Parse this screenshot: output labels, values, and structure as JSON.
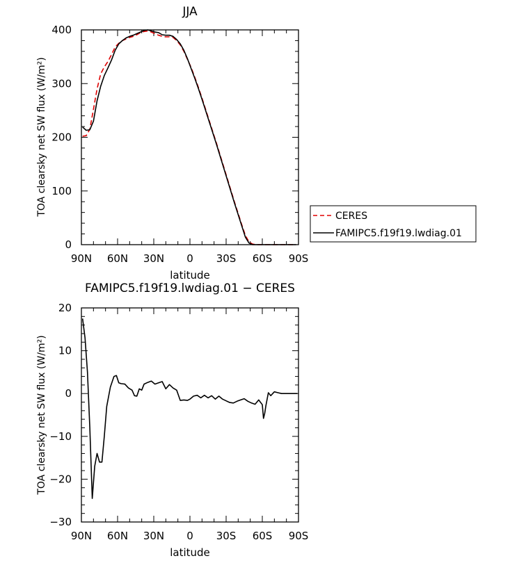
{
  "chart_data": [
    {
      "type": "line",
      "title": "JJA",
      "xlabel": "latitude",
      "ylabel": "TOA clearsky net SW flux (W/m²)",
      "xticks": [
        "90N",
        "60N",
        "30N",
        "0",
        "30S",
        "60S",
        "90S"
      ],
      "yticks": [
        "0",
        "100",
        "200",
        "300",
        "400"
      ],
      "xlim": [
        90,
        -90
      ],
      "ylim": [
        0,
        400
      ],
      "legend": "right",
      "series": [
        {
          "name": "CERES",
          "color": "#e00000",
          "dash": "dashed",
          "x": [
            89,
            86,
            83,
            80,
            77,
            74,
            71,
            68,
            65,
            62,
            59,
            56,
            53,
            50,
            47,
            44,
            41,
            38,
            35,
            32,
            29,
            26,
            23,
            20,
            17,
            14,
            11,
            8,
            5,
            2,
            -1,
            -4,
            -7,
            -10,
            -13,
            -16,
            -19,
            -22,
            -25,
            -28,
            -31,
            -34,
            -37,
            -40,
            -43,
            -46,
            -49,
            -52,
            -55,
            -58,
            -61,
            -64,
            -67,
            -70,
            -73,
            -76,
            -79,
            -82,
            -85,
            -88
          ],
          "values": [
            202,
            203,
            215,
            252,
            290,
            318,
            331,
            341,
            354,
            368,
            375,
            380,
            383,
            386,
            388,
            391,
            395,
            397,
            398,
            396,
            393,
            390,
            388,
            387,
            387,
            386,
            380,
            372,
            360,
            345,
            330,
            312,
            293,
            273,
            252,
            231,
            210,
            189,
            167,
            145,
            123,
            101,
            79,
            58,
            37,
            17,
            5,
            1,
            0,
            0,
            0,
            0,
            0,
            0,
            0,
            0,
            0,
            0,
            0,
            0
          ]
        },
        {
          "name": "FAMIPC5.f19f19.lwdiag.01",
          "color": "#000000",
          "dash": "solid",
          "x": [
            89,
            86,
            83,
            80,
            77,
            74,
            71,
            68,
            65,
            62,
            59,
            56,
            53,
            50,
            47,
            44,
            41,
            38,
            35,
            32,
            29,
            26,
            23,
            20,
            17,
            14,
            11,
            8,
            5,
            2,
            -1,
            -4,
            -7,
            -10,
            -13,
            -16,
            -19,
            -22,
            -25,
            -28,
            -31,
            -34,
            -37,
            -40,
            -43,
            -46,
            -49,
            -52,
            -55,
            -58,
            -61,
            -64,
            -67,
            -70,
            -73,
            -76,
            -79,
            -82,
            -85,
            -88
          ],
          "values": [
            219,
            213,
            214,
            230,
            268,
            295,
            315,
            329,
            344,
            362,
            374,
            380,
            385,
            388,
            390,
            393,
            396,
            399,
            400,
            398,
            396,
            395,
            391,
            390,
            390,
            388,
            382,
            374,
            362,
            346,
            328,
            310,
            291,
            271,
            250,
            229,
            208,
            187,
            165,
            143,
            121,
            99,
            77,
            56,
            35,
            14,
            3,
            0,
            0,
            0,
            0,
            0,
            0,
            0,
            0,
            0,
            0,
            0,
            0,
            0
          ]
        }
      ]
    },
    {
      "type": "line",
      "title": "FAMIPC5.f19f19.lwdiag.01 − CERES",
      "xlabel": "latitude",
      "ylabel": "TOA clearsky net SW flux (W/m²)",
      "xticks": [
        "90N",
        "60N",
        "30N",
        "0",
        "30S",
        "60S",
        "90S"
      ],
      "yticks": [
        "−30",
        "−20",
        "−10",
        "0",
        "10",
        "20"
      ],
      "xlim": [
        90,
        -90
      ],
      "ylim": [
        -30,
        20
      ],
      "series": [
        {
          "color": "#000000",
          "x": [
            89,
            87,
            85,
            83,
            81,
            79,
            77,
            75,
            73,
            71,
            69,
            66,
            63,
            61,
            59,
            57,
            54,
            51,
            48,
            46,
            44,
            42,
            40,
            38,
            35,
            32,
            29,
            26,
            23,
            20,
            17,
            14,
            11,
            8,
            5,
            2,
            0,
            -3,
            -6,
            -9,
            -12,
            -15,
            -18,
            -21,
            -24,
            -27,
            -30,
            -33,
            -36,
            -39,
            -42,
            -45,
            -48,
            -51,
            -54,
            -57,
            -60,
            -61,
            -62,
            -63,
            -65,
            -67,
            -70,
            -73,
            -76,
            -79,
            -82,
            -85,
            -89
          ],
          "values": [
            17.5,
            13,
            5,
            -8,
            -24.5,
            -17,
            -14,
            -16,
            -16,
            -10,
            -3,
            1.5,
            4,
            4.2,
            2.5,
            2.3,
            2.2,
            1.3,
            0.8,
            -0.5,
            -0.6,
            1.1,
            0.8,
            2.2,
            2.6,
            2.9,
            2.2,
            2.5,
            2.8,
            1.1,
            2.1,
            1.3,
            0.8,
            -1.6,
            -1.5,
            -1.6,
            -1.3,
            -0.6,
            -0.4,
            -1,
            -0.4,
            -1,
            -0.5,
            -1.3,
            -0.6,
            -1.3,
            -1.7,
            -2.1,
            -2.2,
            -1.8,
            -1.5,
            -1.2,
            -1.8,
            -2.2,
            -2.5,
            -1.5,
            -2.6,
            -5.8,
            -4.6,
            -2.8,
            0.2,
            -0.5,
            0.4,
            0.2,
            0,
            0,
            0,
            0,
            0
          ]
        }
      ]
    }
  ]
}
